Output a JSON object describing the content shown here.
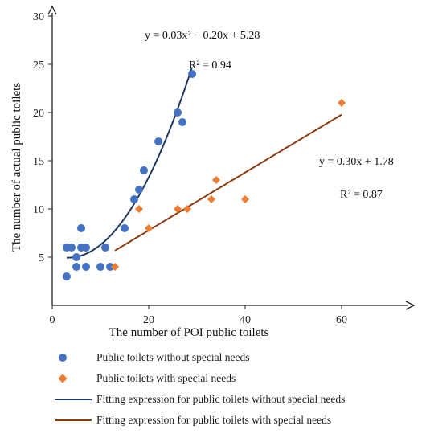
{
  "chart_data": {
    "type": "scatter",
    "xlabel": "The number of POI public toilets",
    "ylabel": "The number of actual public toilets",
    "xlim": [
      0,
      75
    ],
    "ylim": [
      0,
      31
    ],
    "x_ticks": [
      0,
      20,
      40,
      60
    ],
    "y_ticks": [
      5,
      10,
      15,
      20,
      25,
      30
    ],
    "x_tick_labels": [
      "0",
      "20",
      "40",
      "60"
    ],
    "y_tick_labels": [
      "5",
      "10",
      "15",
      "20",
      "25",
      "30"
    ],
    "series": [
      {
        "name": "Public toilets without special needs",
        "kind": "scatter",
        "marker": "circle",
        "color": "#4472C4",
        "points": [
          [
            3,
            3
          ],
          [
            3,
            6
          ],
          [
            4,
            6
          ],
          [
            5,
            4
          ],
          [
            5,
            5
          ],
          [
            6,
            6
          ],
          [
            6,
            8
          ],
          [
            7,
            6
          ],
          [
            7,
            4
          ],
          [
            10,
            4
          ],
          [
            11,
            6
          ],
          [
            12,
            4
          ],
          [
            15,
            8
          ],
          [
            17,
            11
          ],
          [
            18,
            12
          ],
          [
            19,
            14
          ],
          [
            22,
            17
          ],
          [
            26,
            20
          ],
          [
            27,
            19
          ],
          [
            29,
            24
          ]
        ]
      },
      {
        "name": "Public toilets with special needs",
        "kind": "scatter",
        "marker": "diamond",
        "color": "#ED7D31",
        "points": [
          [
            13,
            4
          ],
          [
            18,
            10
          ],
          [
            20,
            8
          ],
          [
            26,
            10
          ],
          [
            28,
            10
          ],
          [
            33,
            11
          ],
          [
            34,
            13
          ],
          [
            40,
            11
          ],
          [
            60,
            21
          ]
        ]
      },
      {
        "name": "Fitting expression for public toilets without special needs",
        "kind": "fit",
        "color": "#1F3864",
        "model": "quadratic",
        "coefficients": [
          0.03,
          -0.2,
          5.28
        ],
        "x_range": [
          3,
          29
        ]
      },
      {
        "name": "Fitting expression for public toilets with special needs",
        "kind": "fit",
        "color": "#8B3A0F",
        "model": "linear",
        "coefficients": [
          0.3,
          1.78
        ],
        "x_range": [
          13,
          60
        ]
      }
    ],
    "annotations": [
      {
        "text": "y = 0.03x² − 0.20x + 5.28"
      },
      {
        "text": "R² = 0.94"
      },
      {
        "text": "y = 0.30x + 1.78"
      },
      {
        "text": "R² = 0.87"
      }
    ],
    "grid": false,
    "legend_position": "bottom"
  }
}
